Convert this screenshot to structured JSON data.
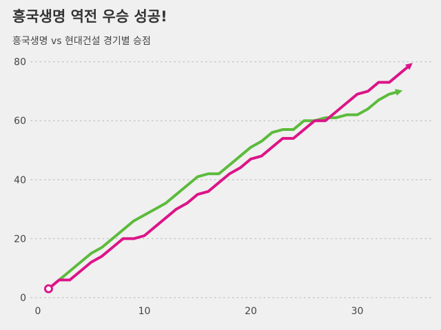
{
  "chart_data": {
    "type": "line",
    "title": "흥국생명 역전 우승 성공!",
    "subtitle": "흥국생명 vs 현대건설 경기별 승점",
    "xlabel": "",
    "ylabel": "",
    "xlim": [
      0,
      36
    ],
    "ylim": [
      0,
      80
    ],
    "xticks": [
      0,
      10,
      20,
      30
    ],
    "yticks": [
      0,
      20,
      40,
      60,
      80
    ],
    "grid": "horizontal dotted",
    "legend": "none",
    "series": [
      {
        "color": "#5cbb3c",
        "x": [
          2,
          3,
          4,
          5,
          6,
          7,
          8,
          9,
          10,
          11,
          12,
          13,
          14,
          15,
          16,
          17,
          18,
          19,
          20,
          21,
          22,
          23,
          24,
          25,
          26,
          27,
          28,
          29,
          30,
          31,
          32,
          33,
          34
        ],
        "y": [
          6,
          9,
          12,
          15,
          17,
          20,
          23,
          26,
          28,
          30,
          32,
          35,
          38,
          41,
          42,
          42,
          45,
          48,
          51,
          53,
          56,
          57,
          57,
          60,
          60,
          61,
          61,
          62,
          62,
          64,
          67,
          69,
          70
        ]
      },
      {
        "color": "#dc1488",
        "x": [
          1,
          2,
          3,
          4,
          5,
          6,
          7,
          8,
          9,
          10,
          11,
          12,
          13,
          14,
          15,
          16,
          17,
          18,
          19,
          20,
          21,
          22,
          23,
          24,
          25,
          26,
          27,
          28,
          29,
          30,
          31,
          32,
          33,
          34,
          35
        ],
        "y": [
          3,
          6,
          6,
          9,
          12,
          14,
          17,
          20,
          20,
          21,
          24,
          27,
          30,
          32,
          35,
          36,
          39,
          42,
          44,
          47,
          48,
          51,
          54,
          54,
          57,
          60,
          60,
          63,
          66,
          69,
          70,
          73,
          73,
          76,
          79
        ]
      }
    ]
  }
}
